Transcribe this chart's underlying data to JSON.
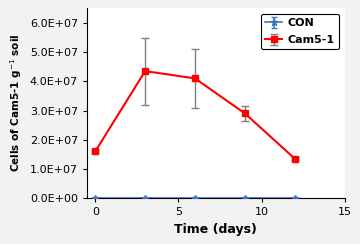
{
  "x_days": [
    0,
    3,
    6,
    9,
    12
  ],
  "con_y": [
    0.0,
    0.0,
    0.0,
    0.0,
    0.0
  ],
  "con_yerr": [
    0.0,
    0.0,
    0.0,
    0.0,
    0.0
  ],
  "cam_y": [
    16000000.0,
    43500000.0,
    41000000.0,
    29000000.0,
    13500000.0
  ],
  "cam_yerr": [
    500000.0,
    11500000.0,
    10000000.0,
    2500000.0,
    500000.0
  ],
  "con_color": "#4472C4",
  "cam_color": "#FF0000",
  "ecolor": "#808080",
  "xlabel": "Time (days)",
  "ylabel": "Cells of Cam5-1 g-1 soil",
  "xlim": [
    -0.5,
    14
  ],
  "ylim": [
    0,
    65000000.0
  ],
  "yticks": [
    0,
    10000000.0,
    20000000.0,
    30000000.0,
    40000000.0,
    50000000.0,
    60000000.0
  ],
  "xticks": [
    0,
    5,
    10,
    15
  ],
  "legend_labels": [
    "CON",
    "Cam5-1"
  ],
  "bg_color": "#F2F2F2",
  "plot_bg": "#FFFFFF"
}
